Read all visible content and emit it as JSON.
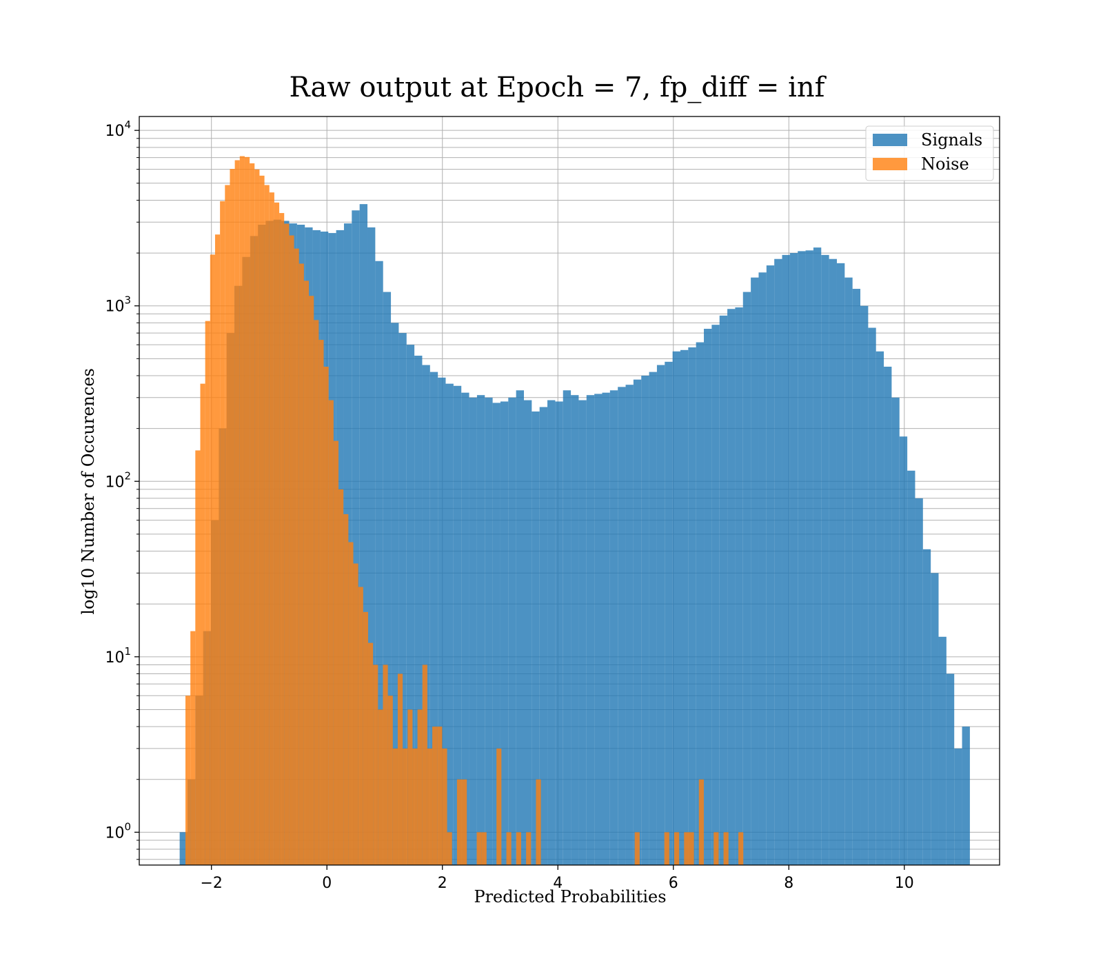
{
  "chart_data": {
    "type": "bar",
    "title": "Raw output at Epoch = 7, fp_diff = inf",
    "xlabel": "Predicted Probabilities",
    "ylabel": "log10 Number of Occurences",
    "xlim": [
      -3.25,
      11.65
    ],
    "ylim": [
      0.65,
      12000
    ],
    "yscale": "log",
    "xticks": [
      -2,
      0,
      2,
      4,
      6,
      8,
      10
    ],
    "xtick_labels": [
      "−2",
      "0",
      "2",
      "4",
      "6",
      "8",
      "10"
    ],
    "yticks": [
      1,
      10,
      100,
      1000,
      10000
    ],
    "ytick_labels": [
      {
        "base": "10",
        "exp": "0"
      },
      {
        "base": "10",
        "exp": "1"
      },
      {
        "base": "10",
        "exp": "2"
      },
      {
        "base": "10",
        "exp": "3"
      },
      {
        "base": "10",
        "exp": "4"
      }
    ],
    "grid": true,
    "legend_position": "top-right",
    "series": [
      {
        "name": "Signals",
        "color": "#1f77b4",
        "opacity": 0.8,
        "bin_start": -2.55,
        "bin_width": 0.1355,
        "values": [
          1,
          2,
          6,
          14,
          60,
          200,
          700,
          1300,
          1900,
          2500,
          2900,
          3050,
          3100,
          3050,
          2950,
          2900,
          2800,
          2700,
          2650,
          2600,
          2700,
          2950,
          3500,
          3800,
          2800,
          1800,
          1200,
          800,
          700,
          600,
          520,
          460,
          420,
          390,
          360,
          350,
          320,
          300,
          310,
          300,
          280,
          285,
          300,
          330,
          290,
          250,
          265,
          290,
          285,
          330,
          310,
          290,
          310,
          315,
          320,
          330,
          345,
          355,
          380,
          400,
          420,
          460,
          480,
          550,
          560,
          580,
          620,
          740,
          780,
          880,
          960,
          980,
          1200,
          1450,
          1550,
          1700,
          1850,
          1950,
          2000,
          2050,
          2070,
          2150,
          1950,
          1850,
          1750,
          1450,
          1250,
          1000,
          750,
          550,
          450,
          300,
          180,
          115,
          80,
          41,
          30,
          13,
          8,
          3,
          4
        ]
      },
      {
        "name": "Noise",
        "color": "#ff7f0e",
        "opacity": 0.8,
        "bin_start": -2.45,
        "bin_width": 0.0855,
        "values": [
          6,
          14,
          150,
          360,
          820,
          1960,
          2550,
          3950,
          4880,
          6030,
          6760,
          7130,
          7050,
          6490,
          5990,
          5520,
          4880,
          4430,
          3880,
          3380,
          2940,
          2520,
          2120,
          1740,
          1390,
          1140,
          830,
          640,
          450,
          290,
          170,
          90,
          65,
          45,
          34,
          25,
          18,
          12,
          9,
          5,
          9,
          6,
          3,
          8,
          3,
          5,
          3,
          5,
          9,
          3,
          4,
          4,
          3,
          1,
          0,
          2,
          2,
          0,
          0,
          1,
          1,
          0,
          0,
          3,
          0,
          1,
          0,
          1,
          0,
          1,
          0,
          2,
          0,
          0,
          0,
          0,
          0,
          0,
          0,
          0,
          0,
          0,
          0,
          0,
          0,
          0,
          0,
          0,
          0,
          0,
          0,
          1,
          0,
          0,
          0,
          0,
          0,
          1,
          0,
          1,
          0,
          1,
          1,
          0,
          2,
          0,
          0,
          1,
          0,
          1,
          0,
          0,
          1,
          0,
          0
        ]
      }
    ]
  }
}
